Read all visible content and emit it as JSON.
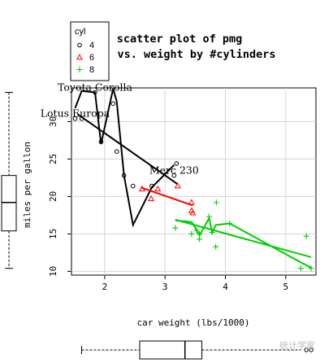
{
  "chart_data": {
    "type": "scatter",
    "title_line1": "scatter plot of pmg",
    "title_line2": "vs. weight by #cylinders",
    "xlabel": "car weight (lbs/1000)",
    "ylabel": "miles per gallon",
    "xlim": [
      1.45,
      5.5
    ],
    "ylim": [
      9.5,
      34.5
    ],
    "x_ticks": [
      2,
      3,
      4,
      5
    ],
    "y_ticks": [
      10,
      15,
      20,
      25,
      30
    ],
    "grid": true,
    "legend": {
      "title": "cyl",
      "placement": "top-left, outside plot",
      "entries": [
        {
          "label": "4",
          "symbol": "circle",
          "color": "#000000"
        },
        {
          "label": "6",
          "symbol": "triangle",
          "color": "#ff0000"
        },
        {
          "label": "8",
          "symbol": "plus",
          "color": "#00cd00"
        }
      ]
    },
    "series": [
      {
        "name": "4",
        "color": "#000000",
        "symbol": "circle",
        "points": [
          [
            1.51,
            30.4
          ],
          [
            1.62,
            30.4
          ],
          [
            1.84,
            33.9
          ],
          [
            1.94,
            27.3
          ],
          [
            2.14,
            32.4
          ],
          [
            2.2,
            26.0
          ],
          [
            2.32,
            22.8
          ],
          [
            2.47,
            21.4
          ],
          [
            2.78,
            21.4
          ],
          [
            3.15,
            22.8
          ],
          [
            3.19,
            24.4
          ]
        ],
        "smooth": [
          [
            1.51,
            31.8
          ],
          [
            1.62,
            34.1
          ],
          [
            1.84,
            33.9
          ],
          [
            1.94,
            27.0
          ],
          [
            2.14,
            34.4
          ],
          [
            2.2,
            32.7
          ],
          [
            2.32,
            22.8
          ],
          [
            2.47,
            16.2
          ],
          [
            2.78,
            21.2
          ],
          [
            3.15,
            24.2
          ]
        ],
        "fit": [
          [
            1.55,
            31.0
          ],
          [
            3.2,
            21.7
          ]
        ]
      },
      {
        "name": "6",
        "color": "#ff0000",
        "symbol": "triangle",
        "points": [
          [
            2.62,
            21.0
          ],
          [
            2.77,
            19.7
          ],
          [
            2.88,
            21.0
          ],
          [
            3.21,
            21.4
          ],
          [
            3.44,
            18.1
          ],
          [
            3.44,
            19.2
          ],
          [
            3.46,
            17.8
          ]
        ],
        "smooth": [],
        "fit": [
          [
            2.6,
            21.2
          ],
          [
            3.46,
            18.8
          ]
        ]
      },
      {
        "name": "8",
        "color": "#00cd00",
        "symbol": "plus",
        "points": [
          [
            3.17,
            15.8
          ],
          [
            3.44,
            15.0
          ],
          [
            3.52,
            15.5
          ],
          [
            3.57,
            14.3
          ],
          [
            3.57,
            15.0
          ],
          [
            3.73,
            17.3
          ],
          [
            3.78,
            15.2
          ],
          [
            3.84,
            13.3
          ],
          [
            3.85,
            19.2
          ],
          [
            4.07,
            16.4
          ],
          [
            5.25,
            10.4
          ],
          [
            5.34,
            14.7
          ],
          [
            5.42,
            10.4
          ]
        ],
        "smooth": [
          [
            3.17,
            16.8
          ],
          [
            3.44,
            16.6
          ],
          [
            3.52,
            15.6
          ],
          [
            3.57,
            14.8
          ],
          [
            3.73,
            17.1
          ],
          [
            3.78,
            15.2
          ],
          [
            3.84,
            16.2
          ],
          [
            4.07,
            16.4
          ],
          [
            5.25,
            11.2
          ],
          [
            5.42,
            10.5
          ]
        ],
        "fit": [
          [
            3.17,
            16.9
          ],
          [
            5.42,
            11.9
          ]
        ]
      }
    ],
    "annotations": [
      {
        "text": "Toyota Corolla",
        "x": 1.84,
        "y": 33.9
      },
      {
        "text": "Lotus Europa",
        "x": 1.51,
        "y": 30.4
      },
      {
        "text": "Merc 230",
        "x": 3.15,
        "y": 22.8
      }
    ],
    "marginal_boxplot_y": {
      "min": 10.4,
      "q1": 15.4,
      "median": 19.2,
      "q3": 22.8,
      "max": 33.9
    },
    "marginal_boxplot_x": {
      "min": 1.51,
      "q1": 2.58,
      "median": 3.33,
      "q3": 3.61,
      "max": 5.42,
      "outliers": [
        5.34,
        5.42
      ]
    }
  },
  "watermark": "统计学家"
}
